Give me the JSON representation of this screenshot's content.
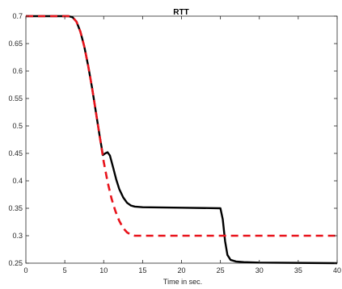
{
  "chart_data": {
    "type": "line",
    "title": "RTT",
    "xlabel": "Time in sec.",
    "ylabel": "",
    "xlim": [
      0,
      40
    ],
    "ylim": [
      0.25,
      0.7
    ],
    "xticks": [
      "0",
      "5",
      "10",
      "15",
      "20",
      "25",
      "30",
      "35",
      "40"
    ],
    "yticks": [
      "0.25",
      "0.3",
      "0.35",
      "0.4",
      "0.45",
      "0.5",
      "0.55",
      "0.6",
      "0.65",
      "0.7"
    ],
    "grid": false,
    "legend": "none",
    "series": [
      {
        "color": "#000000",
        "style": "solid",
        "points": [
          [
            0,
            0.7
          ],
          [
            5.5,
            0.7
          ],
          [
            6.0,
            0.698
          ],
          [
            6.5,
            0.69
          ],
          [
            7.0,
            0.672
          ],
          [
            7.5,
            0.645
          ],
          [
            8.0,
            0.61
          ],
          [
            8.5,
            0.57
          ],
          [
            9.0,
            0.525
          ],
          [
            9.5,
            0.48
          ],
          [
            9.9,
            0.447
          ],
          [
            10.2,
            0.45
          ],
          [
            10.5,
            0.452
          ],
          [
            10.8,
            0.446
          ],
          [
            11.2,
            0.425
          ],
          [
            11.6,
            0.403
          ],
          [
            12.0,
            0.385
          ],
          [
            12.5,
            0.37
          ],
          [
            13.0,
            0.36
          ],
          [
            13.5,
            0.355
          ],
          [
            14.0,
            0.353
          ],
          [
            15.0,
            0.352
          ],
          [
            20.0,
            0.351
          ],
          [
            25.0,
            0.35
          ],
          [
            25.3,
            0.33
          ],
          [
            25.6,
            0.29
          ],
          [
            25.9,
            0.265
          ],
          [
            26.3,
            0.256
          ],
          [
            27.0,
            0.253
          ],
          [
            28.0,
            0.252
          ],
          [
            30.0,
            0.251
          ],
          [
            40.0,
            0.25
          ]
        ]
      },
      {
        "color": "#e8131b",
        "style": "dashed",
        "points": [
          [
            0,
            0.7
          ],
          [
            5.5,
            0.7
          ],
          [
            6.0,
            0.698
          ],
          [
            6.5,
            0.69
          ],
          [
            7.0,
            0.672
          ],
          [
            7.5,
            0.645
          ],
          [
            8.0,
            0.61
          ],
          [
            8.5,
            0.57
          ],
          [
            9.0,
            0.525
          ],
          [
            9.5,
            0.48
          ],
          [
            10.0,
            0.435
          ],
          [
            10.5,
            0.398
          ],
          [
            11.0,
            0.368
          ],
          [
            11.5,
            0.345
          ],
          [
            12.0,
            0.327
          ],
          [
            12.5,
            0.314
          ],
          [
            13.0,
            0.306
          ],
          [
            13.5,
            0.302
          ],
          [
            14.0,
            0.3
          ],
          [
            15.0,
            0.3
          ],
          [
            25.0,
            0.3
          ],
          [
            40.0,
            0.3
          ]
        ]
      }
    ]
  }
}
